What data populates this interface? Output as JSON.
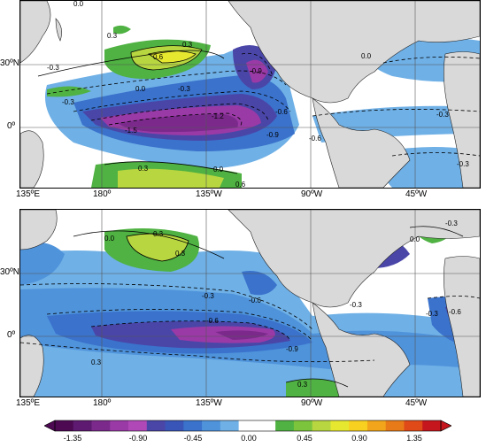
{
  "top_panel": {
    "lat_labels": [
      "30ºN",
      "0º"
    ],
    "lon_labels": [
      "135ºE",
      "180º",
      "135ºW",
      "90ºW",
      "45ºW"
    ],
    "contour_labels": [
      "0.0",
      "0.3",
      "0.3",
      "0.6",
      "-0.3",
      "0.0",
      "-0.3",
      "-0.9",
      "-0.6",
      "-1.2",
      "-1.5",
      "-0.9",
      "-0.6",
      "0.3",
      "0.0",
      "0.6",
      "-0.3",
      "0.0",
      "-0.3",
      "-0.3"
    ]
  },
  "bottom_panel": {
    "lat_labels": [
      "30ºN",
      "0º"
    ],
    "lon_labels": [
      "135ºE",
      "180º",
      "135ºW",
      "90ºW",
      "45ºW"
    ],
    "contour_labels": [
      "0.3",
      "0.0",
      "0.3",
      "-0.6",
      "-0.3",
      "-0.3",
      "-0.6",
      "-0.9",
      "0.3",
      "0.0",
      "-0.3",
      "-0.6",
      "-0.3",
      "0.3"
    ]
  },
  "colorbar": {
    "ticks": [
      "-1.35",
      "-0.90",
      "-0.45",
      "0.00",
      "0.45",
      "0.90",
      "1.35"
    ],
    "colors": [
      "#4d0a53",
      "#5e1a70",
      "#7b2a8c",
      "#9a3aa6",
      "#b048b8",
      "#4a46a8",
      "#3a55b8",
      "#3a72cc",
      "#4f93db",
      "#6fb0e6",
      "#ffffff",
      "#ffffff",
      "#4fb242",
      "#7cc43c",
      "#b8d640",
      "#e6e830",
      "#f8d020",
      "#f2a51a",
      "#e97a18",
      "#e04a18",
      "#c4161c"
    ]
  },
  "colors": {
    "land": "#d9d9d9",
    "ocean_neutral": "#ffffff"
  }
}
